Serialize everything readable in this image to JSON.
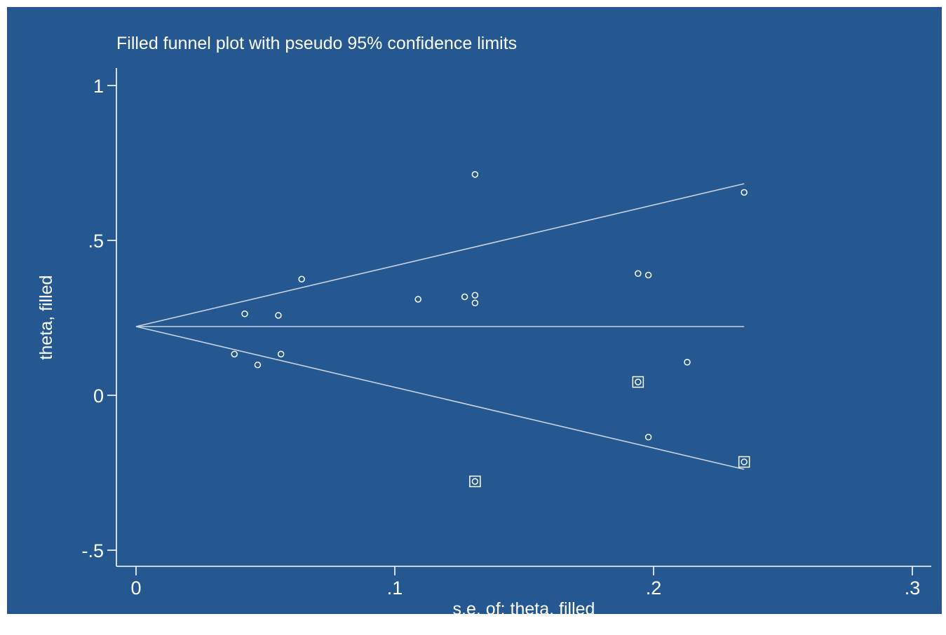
{
  "chart_data": {
    "type": "scatter",
    "title": "Filled funnel plot with pseudo 95% confidence limits",
    "xlabel": "s.e. of: theta, filled",
    "ylabel": "theta, filled",
    "xlim": [
      -0.008,
      0.308
    ],
    "ylim": [
      -0.55,
      1.05
    ],
    "x_ticks": [
      {
        "value": 0,
        "label": "0"
      },
      {
        "value": 0.1,
        "label": ".1"
      },
      {
        "value": 0.2,
        "label": ".2"
      },
      {
        "value": 0.3,
        "label": ".3"
      }
    ],
    "y_ticks": [
      {
        "value": -0.5,
        "label": "-.5"
      },
      {
        "value": 0,
        "label": "0"
      },
      {
        "value": 0.5,
        "label": ".5"
      },
      {
        "value": 1,
        "label": "1"
      }
    ],
    "grid": false,
    "legend": "none",
    "pooled_estimate": 0.222,
    "se_max": 0.235,
    "confidence_limits": {
      "upper": [
        [
          0,
          0.222
        ],
        [
          0.235,
          0.683
        ]
      ],
      "lower": [
        [
          0,
          0.222
        ],
        [
          0.235,
          -0.239
        ]
      ],
      "center": [
        [
          0,
          0.222
        ],
        [
          0.235,
          0.222
        ]
      ]
    },
    "observed": [
      {
        "se": 0.038,
        "theta": 0.133
      },
      {
        "se": 0.042,
        "theta": 0.263
      },
      {
        "se": 0.047,
        "theta": 0.098
      },
      {
        "se": 0.055,
        "theta": 0.258
      },
      {
        "se": 0.056,
        "theta": 0.133
      },
      {
        "se": 0.064,
        "theta": 0.375
      },
      {
        "se": 0.109,
        "theta": 0.31
      },
      {
        "se": 0.127,
        "theta": 0.318
      },
      {
        "se": 0.131,
        "theta": 0.713
      },
      {
        "se": 0.131,
        "theta": 0.323
      },
      {
        "se": 0.131,
        "theta": 0.298
      },
      {
        "se": 0.194,
        "theta": 0.393
      },
      {
        "se": 0.198,
        "theta": 0.388
      },
      {
        "se": 0.198,
        "theta": -0.135
      },
      {
        "se": 0.213,
        "theta": 0.107
      },
      {
        "se": 0.235,
        "theta": 0.655
      }
    ],
    "filled": [
      {
        "se": 0.131,
        "theta": -0.278
      },
      {
        "se": 0.194,
        "theta": 0.043
      },
      {
        "se": 0.235,
        "theta": -0.215
      }
    ],
    "colors": {
      "background": "#ffffff",
      "plot_region": "#255791",
      "foreground": "#ffffff",
      "line": "#c8d3e3"
    }
  }
}
